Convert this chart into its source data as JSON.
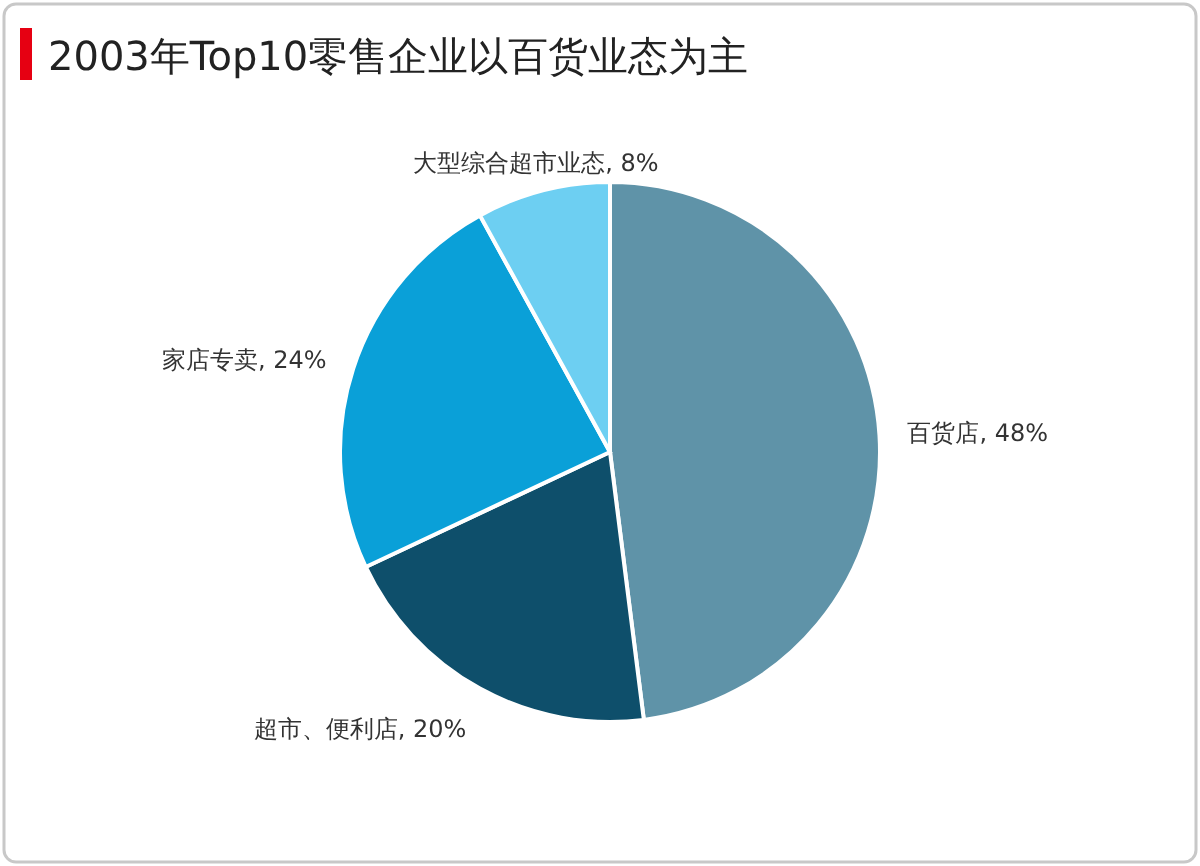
{
  "chart_data": {
    "type": "pie",
    "title": "2003年Top10零售企业以百货业态为主",
    "categories": [
      "百货店",
      "超市、便利店",
      "家店专卖",
      "大型综合超市业态"
    ],
    "values": [
      48,
      20,
      24,
      8
    ],
    "value_labels": [
      "48%",
      "20%",
      "24%",
      "8%"
    ],
    "colors": [
      "#5f93a8",
      "#0e4f6b",
      "#0aa0d8",
      "#6dcff2"
    ],
    "legend": false
  }
}
